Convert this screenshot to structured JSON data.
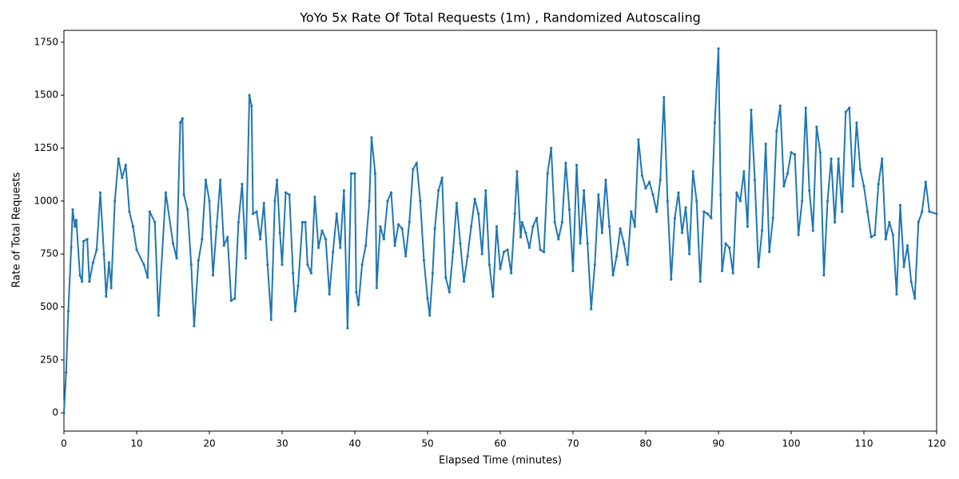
{
  "chart_data": {
    "type": "line",
    "title": "YoYo 5x Rate Of Total Requests (1m) , Randomized Autoscaling",
    "x_label": "Elapsed Time (minutes)",
    "y_label": "Rate of Total Requests",
    "xlim": [
      0,
      120
    ],
    "ylim": [
      -86,
      1806
    ],
    "xticks": [
      0,
      10,
      20,
      30,
      40,
      50,
      60,
      70,
      80,
      90,
      100,
      110,
      120
    ],
    "yticks": [
      0,
      250,
      500,
      750,
      1000,
      1250,
      1500,
      1750
    ],
    "grid": false,
    "series": [
      {
        "color": "#1f77b4",
        "x": [
          0,
          0.3,
          0.6,
          1,
          1.2,
          1.5,
          1.7,
          2.2,
          2.5,
          2.7,
          3.2,
          3.5,
          4,
          4.5,
          5,
          5.5,
          5.8,
          6.2,
          6.5,
          7,
          7.5,
          8,
          8.5,
          9,
          9.5,
          10,
          11,
          11.5,
          11.8,
          12.5,
          13,
          14,
          15,
          15.5,
          16,
          16.3,
          16.5,
          17,
          17.5,
          17.9,
          18.5,
          19,
          19.5,
          20,
          20.5,
          21,
          21.5,
          22,
          22.5,
          23,
          23.5,
          24,
          24.5,
          25,
          25.5,
          25.8,
          26,
          26.5,
          27,
          27.5,
          28,
          28.5,
          29,
          29.3,
          29.7,
          30,
          30.5,
          31,
          31.5,
          31.8,
          32.2,
          32.8,
          33.2,
          33.5,
          34,
          34.5,
          35,
          35.5,
          36,
          36.5,
          37,
          37.5,
          38,
          38.5,
          39,
          39.5,
          40,
          40.2,
          40.5,
          41,
          41.5,
          42,
          42.3,
          42.8,
          43,
          43.5,
          44,
          44.5,
          45,
          45.5,
          46,
          46.5,
          47,
          47.5,
          48,
          48.5,
          49,
          49.5,
          50,
          50.3,
          50.7,
          51,
          51.5,
          52,
          52.5,
          53,
          53.5,
          54,
          54.5,
          55,
          55.5,
          56,
          56.5,
          57,
          57.5,
          58,
          58.5,
          59,
          59.5,
          60,
          60.5,
          61,
          61.5,
          62,
          62.3,
          62.8,
          63,
          63.5,
          64,
          64.5,
          65,
          65.5,
          66,
          66.5,
          67,
          67.5,
          68,
          68.5,
          69,
          69.5,
          70,
          70.5,
          71,
          71.5,
          72,
          72.5,
          73,
          73.5,
          74,
          74.5,
          75,
          75.5,
          76,
          76.5,
          77,
          77.5,
          78,
          78.5,
          79,
          79.5,
          80,
          80.5,
          81,
          81.5,
          82,
          82.5,
          83,
          83.5,
          84,
          84.5,
          85,
          85.5,
          86,
          86.5,
          87,
          87.5,
          88,
          88.5,
          89,
          89.5,
          90,
          90.3,
          90.5,
          91,
          91.5,
          92,
          92.5,
          93,
          93.5,
          94,
          94.5,
          95,
          95.5,
          96,
          96.5,
          97,
          97.5,
          98,
          98.5,
          99,
          99.5,
          100,
          100.5,
          101,
          101.5,
          102,
          102.5,
          103,
          103.5,
          104,
          104.5,
          105,
          105.5,
          106,
          106.5,
          107,
          107.5,
          108,
          108.5,
          109,
          109.5,
          110,
          110.5,
          111,
          111.5,
          112,
          112.5,
          113,
          113.5,
          114,
          114.5,
          115,
          115.5,
          116,
          116.5,
          117,
          117.5,
          118,
          118.5,
          119,
          120
        ],
        "values": [
          0,
          190,
          480,
          780,
          960,
          880,
          910,
          650,
          620,
          810,
          820,
          620,
          710,
          770,
          1040,
          750,
          550,
          710,
          590,
          1000,
          1200,
          1110,
          1170,
          950,
          880,
          770,
          700,
          640,
          950,
          900,
          460,
          1040,
          800,
          730,
          1370,
          1390,
          1030,
          960,
          700,
          410,
          720,
          820,
          1100,
          1000,
          650,
          880,
          1100,
          790,
          830,
          530,
          540,
          900,
          1080,
          730,
          1500,
          1450,
          940,
          950,
          820,
          990,
          700,
          440,
          1000,
          1100,
          850,
          700,
          1040,
          1030,
          660,
          480,
          600,
          900,
          900,
          700,
          660,
          1020,
          780,
          860,
          820,
          560,
          760,
          940,
          780,
          1050,
          400,
          1130,
          1130,
          570,
          510,
          700,
          790,
          1000,
          1300,
          1130,
          590,
          880,
          820,
          1000,
          1040,
          790,
          890,
          870,
          740,
          900,
          1150,
          1180,
          1000,
          720,
          540,
          460,
          660,
          870,
          1050,
          1110,
          640,
          570,
          760,
          990,
          800,
          620,
          740,
          880,
          1010,
          940,
          750,
          1050,
          700,
          550,
          880,
          680,
          760,
          770,
          660,
          940,
          1140,
          830,
          900,
          850,
          780,
          880,
          920,
          770,
          760,
          1130,
          1250,
          900,
          820,
          900,
          1180,
          960,
          670,
          1170,
          800,
          1050,
          800,
          490,
          700,
          1030,
          850,
          1100,
          880,
          650,
          740,
          870,
          800,
          700,
          950,
          880,
          1290,
          1120,
          1060,
          1090,
          1030,
          950,
          1100,
          1490,
          1000,
          630,
          920,
          1040,
          850,
          970,
          750,
          1140,
          1000,
          620,
          950,
          940,
          920,
          1370,
          1720,
          1030,
          670,
          800,
          780,
          660,
          1040,
          1000,
          1140,
          880,
          1430,
          1100,
          690,
          860,
          1270,
          760,
          920,
          1330,
          1450,
          1070,
          1130,
          1230,
          1220,
          840,
          1000,
          1440,
          1050,
          860,
          1350,
          1230,
          650,
          1000,
          1200,
          900,
          1200,
          950,
          1420,
          1440,
          1070,
          1370,
          1150,
          1070,
          950,
          830,
          840,
          1080,
          1200,
          820,
          900,
          840,
          560,
          980,
          690,
          790,
          620,
          540,
          900,
          950,
          1090,
          950,
          940
        ]
      }
    ]
  }
}
